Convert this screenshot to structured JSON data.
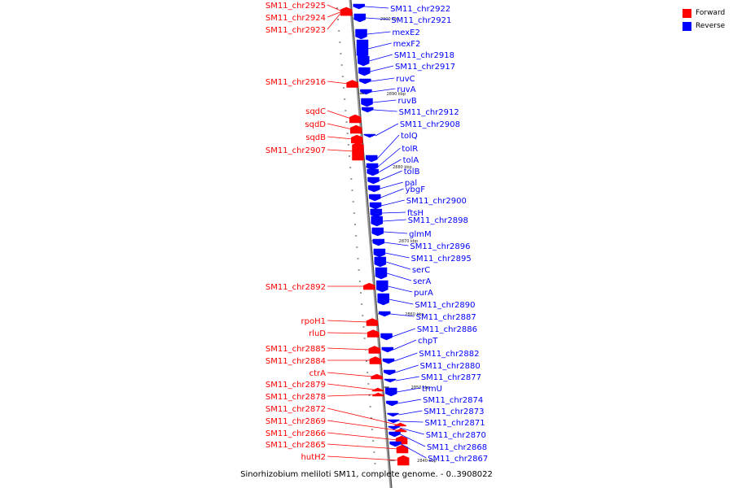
{
  "caption": "Sinorhizobium meliloti SM11, complete genome. - 0..3908022",
  "legend": [
    {
      "label": "Forward",
      "color": "#ff0000"
    },
    {
      "label": "Reverse",
      "color": "#0000ff"
    }
  ],
  "colors": {
    "forward": "#ff0000",
    "reverse": "#0000ff",
    "axis": "#888888"
  },
  "axis_ticks": [
    "2900 kbp",
    "2890 kbp",
    "2880 kbp",
    "2870 kbp",
    "2860 kbp",
    "2850 kbp",
    "2840 kbp"
  ],
  "forward_genes": [
    "SM11_chr2925",
    "SM11_chr2924",
    "SM11_chr2923",
    "SM11_chr2916",
    "sqdC",
    "sqdD",
    "sqdB",
    "SM11_chr2907",
    "SM11_chr2892",
    "rpoH1",
    "rluD",
    "SM11_chr2885",
    "SM11_chr2884",
    "ctrA",
    "SM11_chr2879",
    "SM11_chr2878",
    "SM11_chr2872",
    "SM11_chr2869",
    "SM11_chr2866",
    "SM11_chr2865",
    "hutH2"
  ],
  "reverse_genes": [
    "SM11_chr2922",
    "SM11_chr2921",
    "mexE2",
    "mexF2",
    "SM11_chr2918",
    "SM11_chr2917",
    "ruvC",
    "ruvA",
    "ruvB",
    "SM11_chr2912",
    "SM11_chr2908",
    "tolQ",
    "tolR",
    "tolA",
    "tolB",
    "pal",
    "ybgF",
    "SM11_chr2900",
    "ftsH",
    "SM11_chr2898",
    "glmM",
    "SM11_chr2896",
    "SM11_chr2895",
    "serC",
    "serA",
    "purA",
    "SM11_chr2890",
    "SM11_chr2887",
    "SM11_chr2886",
    "chpT",
    "SM11_chr2882",
    "SM11_chr2880",
    "SM11_chr2877",
    "trmU",
    "SM11_chr2874",
    "SM11_chr2873",
    "SM11_chr2871",
    "SM11_chr2870",
    "SM11_chr2868",
    "SM11_chr2867"
  ]
}
